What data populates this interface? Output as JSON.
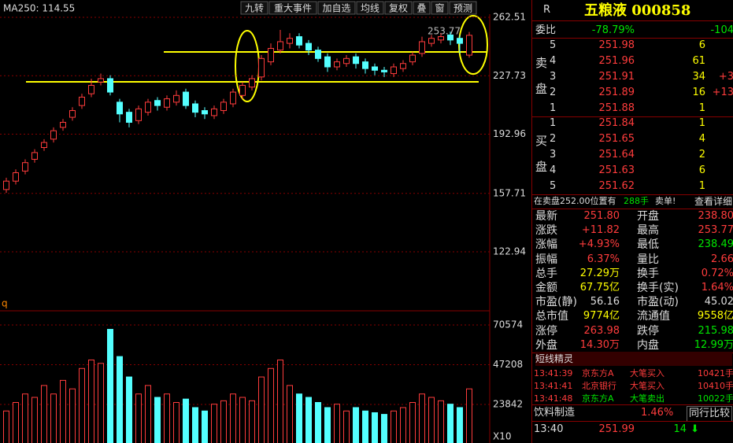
{
  "toolbar": {
    "ma_label": "MA250: 114.55",
    "buttons": [
      "九转",
      "重大事件",
      "加自选",
      "均线",
      "复权",
      "叠",
      "窗",
      "预测"
    ]
  },
  "price_chart": {
    "yticks": [
      262.51,
      227.73,
      192.96,
      157.71,
      122.94
    ],
    "high_label": "253.77",
    "pane_label": "q",
    "candles": [
      [
        160,
        167,
        158,
        165
      ],
      [
        165,
        172,
        163,
        170
      ],
      [
        171,
        178,
        169,
        176
      ],
      [
        178,
        184,
        176,
        182
      ],
      [
        185,
        190,
        183,
        188
      ],
      [
        190,
        197,
        188,
        195
      ],
      [
        197,
        202,
        195,
        200
      ],
      [
        203,
        209,
        201,
        207
      ],
      [
        210,
        217,
        208,
        215
      ],
      [
        217,
        226,
        215,
        222
      ],
      [
        224,
        229,
        222,
        226
      ],
      [
        226,
        228,
        216,
        218
      ],
      [
        212,
        214,
        200,
        205
      ],
      [
        206,
        208,
        197,
        200
      ],
      [
        201,
        210,
        199,
        208
      ],
      [
        206,
        214,
        204,
        212
      ],
      [
        213,
        215,
        207,
        210
      ],
      [
        209,
        216,
        207,
        214
      ],
      [
        212,
        219,
        210,
        216
      ],
      [
        218,
        220,
        208,
        210
      ],
      [
        211,
        213,
        203,
        206
      ],
      [
        207,
        209,
        202,
        205
      ],
      [
        204,
        210,
        202,
        208
      ],
      [
        207,
        214,
        205,
        212
      ],
      [
        211,
        220,
        209,
        218
      ],
      [
        216,
        224,
        214,
        222
      ],
      [
        221,
        228,
        219,
        226
      ],
      [
        227,
        240,
        225,
        238
      ],
      [
        236,
        247,
        234,
        244
      ],
      [
        243,
        255,
        241,
        248
      ],
      [
        247,
        253,
        244,
        250
      ],
      [
        251,
        253,
        244,
        246
      ],
      [
        247,
        249,
        240,
        243
      ],
      [
        243,
        245,
        236,
        238
      ],
      [
        239,
        241,
        230,
        233
      ],
      [
        233,
        238,
        231,
        236
      ],
      [
        235,
        240,
        233,
        238
      ],
      [
        239,
        241,
        232,
        235
      ],
      [
        236,
        238,
        229,
        232
      ],
      [
        233,
        235,
        228,
        231
      ],
      [
        231,
        233,
        227,
        230
      ],
      [
        229,
        235,
        227,
        233
      ],
      [
        232,
        237,
        230,
        235
      ],
      [
        236,
        242,
        234,
        240
      ],
      [
        241,
        251,
        239,
        248
      ],
      [
        247,
        252,
        245,
        250
      ],
      [
        249,
        253,
        247,
        251
      ],
      [
        252,
        254,
        246,
        249
      ],
      [
        250,
        252,
        241,
        247
      ],
      [
        240,
        253.77,
        238.49,
        251.8
      ]
    ]
  },
  "volume_chart": {
    "yticks": [
      70574,
      47208,
      23842
    ],
    "unit_label": "X10",
    "values": [
      20000,
      25000,
      30000,
      28000,
      35000,
      30000,
      38000,
      33000,
      45000,
      50000,
      48000,
      68000,
      52000,
      40000,
      30000,
      35000,
      28000,
      30000,
      25000,
      27000,
      22000,
      20000,
      24000,
      26000,
      30000,
      28000,
      26000,
      40000,
      45000,
      50000,
      35000,
      30000,
      28000,
      25000,
      22000,
      24000,
      20000,
      22000,
      20000,
      19000,
      18000,
      20000,
      22000,
      25000,
      30000,
      28000,
      26000,
      24000,
      22000,
      33000
    ]
  },
  "quote": {
    "flag": "R",
    "title": "五粮液 000858",
    "committee": {
      "label": "委比",
      "ratio": "-78.79%",
      "diff": "-104"
    },
    "sell_label": [
      "卖",
      "盘"
    ],
    "buy_label": [
      "买",
      "盘"
    ],
    "sell": [
      [
        "5",
        "251.98",
        "6",
        ""
      ],
      [
        "4",
        "251.96",
        "61",
        ""
      ],
      [
        "3",
        "251.91",
        "34",
        "+3"
      ],
      [
        "2",
        "251.89",
        "16",
        "+13"
      ],
      [
        "1",
        "251.88",
        "1",
        ""
      ]
    ],
    "buy": [
      [
        "1",
        "251.84",
        "1"
      ],
      [
        "2",
        "251.65",
        "4"
      ],
      [
        "3",
        "251.64",
        "2"
      ],
      [
        "4",
        "251.63",
        "6"
      ],
      [
        "5",
        "251.62",
        "1"
      ]
    ],
    "notice": {
      "text": "在卖盘252.00位置有",
      "amount": "288手",
      "alert": "卖单!",
      "link": "查看详细"
    },
    "stats": [
      [
        "最新",
        "251.80",
        "开盘",
        "238.80"
      ],
      [
        "涨跌",
        "+11.82",
        "最高",
        "253.77"
      ],
      [
        "涨幅",
        "+4.93%",
        "最低",
        "238.49"
      ],
      [
        "振幅",
        "6.37%",
        "量比",
        "2.66"
      ],
      [
        "总手",
        "27.29万",
        "换手",
        "0.72%"
      ],
      [
        "金额",
        "67.75亿",
        "换手(实)",
        "1.64%"
      ],
      [
        "市盈(静)",
        "56.16",
        "市盈(动)",
        "45.02"
      ],
      [
        "总市值",
        "9774亿",
        "流通值",
        "9558亿"
      ],
      [
        "涨停",
        "263.98",
        "跌停",
        "215.98"
      ],
      [
        "外盘",
        "14.30万",
        "内盘",
        "12.99万"
      ]
    ],
    "short_line": {
      "title": "短线精灵",
      "rows": [
        [
          "13:41:39",
          "京东方A",
          "大笔买入",
          "10421手"
        ],
        [
          "13:41:41",
          "北京银行",
          "大笔买入",
          "10410手"
        ],
        [
          "13:41:48",
          "京东方A",
          "大笔卖出",
          "10022手"
        ]
      ]
    },
    "sector": {
      "name": "饮料制造",
      "change": "1.46%",
      "button": "同行比较"
    },
    "tick": {
      "time": "13:40",
      "price": "251.99",
      "volume": "14"
    }
  }
}
